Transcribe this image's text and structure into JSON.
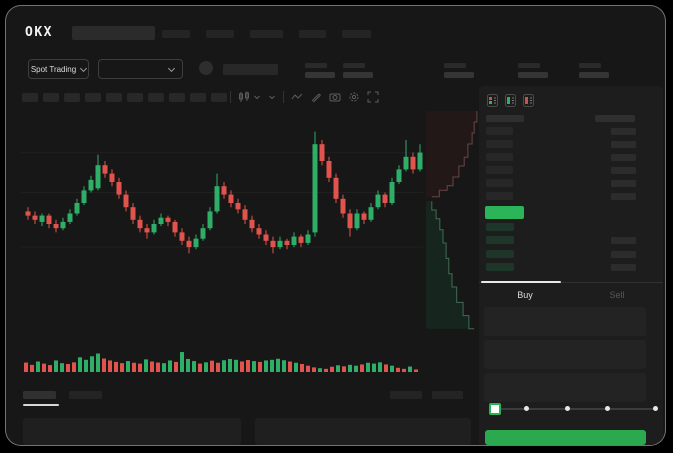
{
  "app": {
    "logo_text": "OKX"
  },
  "topnav": {
    "placeholder_count": 5,
    "placeholder_widths": [
      28,
      28,
      33,
      27,
      29
    ]
  },
  "ticker": {
    "market_selector_label": "Spot Trading",
    "stat_group_count": 5
  },
  "chart_toolbar": {
    "interval_placeholder_count": 10,
    "icon_names": [
      "candlestick-type-icon",
      "chart-style-chevron-icon",
      "indicators-wave-icon",
      "draw-pencil-icon",
      "screenshot-camera-icon",
      "settings-gear-icon",
      "fullscreen-expand-icon"
    ]
  },
  "colors": {
    "candle_up": "#2fae68",
    "candle_down": "#e1544e",
    "last_price": "#2cb458",
    "buy_button": "#2aa94f",
    "depth_ask_line": "#6a4545",
    "depth_ask_fill": "#231818",
    "depth_bid_line": "#3e6d55",
    "depth_bid_fill": "#16261e"
  },
  "chart_data": [
    {
      "type": "candlestick",
      "title": "",
      "xlabel": "",
      "ylabel": "",
      "ylim": [
        0,
        100
      ],
      "grid": true,
      "gridline_values": [
        84,
        65,
        39
      ],
      "ohlc": [
        [
          56,
          58,
          52,
          54
        ],
        [
          54,
          56,
          50,
          52
        ],
        [
          51,
          55,
          49,
          54
        ],
        [
          54,
          55,
          48,
          50
        ],
        [
          50,
          52,
          46,
          48
        ],
        [
          48,
          53,
          47,
          51
        ],
        [
          51,
          57,
          50,
          55
        ],
        [
          55,
          62,
          54,
          60
        ],
        [
          60,
          68,
          59,
          66
        ],
        [
          66,
          73,
          65,
          71
        ],
        [
          67,
          83,
          66,
          78
        ],
        [
          78,
          80,
          72,
          74
        ],
        [
          74,
          76,
          68,
          70
        ],
        [
          70,
          72,
          62,
          64
        ],
        [
          64,
          66,
          56,
          58
        ],
        [
          58,
          60,
          50,
          52
        ],
        [
          52,
          54,
          46,
          48
        ],
        [
          48,
          50,
          43,
          46
        ],
        [
          46,
          52,
          45,
          50
        ],
        [
          50,
          55,
          49,
          53
        ],
        [
          53,
          54,
          49,
          51
        ],
        [
          51,
          52,
          44,
          46
        ],
        [
          46,
          48,
          40,
          42
        ],
        [
          42,
          44,
          36,
          39
        ],
        [
          39,
          45,
          38,
          43
        ],
        [
          43,
          50,
          42,
          48
        ],
        [
          48,
          58,
          47,
          56
        ],
        [
          56,
          74,
          55,
          68
        ],
        [
          68,
          70,
          62,
          64
        ],
        [
          64,
          66,
          58,
          60
        ],
        [
          60,
          62,
          55,
          57
        ],
        [
          57,
          59,
          50,
          52
        ],
        [
          52,
          54,
          46,
          48
        ],
        [
          48,
          50,
          43,
          45
        ],
        [
          45,
          47,
          40,
          42
        ],
        [
          42,
          44,
          36,
          39
        ],
        [
          39,
          44,
          38,
          42
        ],
        [
          42,
          43,
          38,
          40
        ],
        [
          40,
          46,
          39,
          44
        ],
        [
          44,
          45,
          39,
          41
        ],
        [
          41,
          47,
          40,
          45
        ],
        [
          46,
          94,
          44,
          88
        ],
        [
          88,
          90,
          78,
          80
        ],
        [
          80,
          82,
          70,
          72
        ],
        [
          72,
          74,
          60,
          62
        ],
        [
          62,
          64,
          53,
          55
        ],
        [
          55,
          57,
          44,
          48
        ],
        [
          48,
          57,
          47,
          55
        ],
        [
          55,
          56,
          50,
          52
        ],
        [
          52,
          60,
          51,
          58
        ],
        [
          58,
          66,
          57,
          64
        ],
        [
          64,
          65,
          58,
          60
        ],
        [
          60,
          72,
          59,
          70
        ],
        [
          70,
          78,
          69,
          76
        ],
        [
          76,
          90,
          75,
          82
        ],
        [
          82,
          84,
          74,
          76
        ],
        [
          76,
          88,
          75,
          84
        ]
      ]
    },
    {
      "type": "bar",
      "name": "volume",
      "ylim": [
        0,
        100
      ],
      "values": [
        [
          45,
          "d"
        ],
        [
          34,
          "d"
        ],
        [
          50,
          "u"
        ],
        [
          40,
          "d"
        ],
        [
          33,
          "d"
        ],
        [
          55,
          "u"
        ],
        [
          42,
          "u"
        ],
        [
          38,
          "d"
        ],
        [
          46,
          "d"
        ],
        [
          70,
          "u"
        ],
        [
          58,
          "u"
        ],
        [
          75,
          "u"
        ],
        [
          88,
          "u"
        ],
        [
          64,
          "d"
        ],
        [
          55,
          "d"
        ],
        [
          48,
          "d"
        ],
        [
          42,
          "d"
        ],
        [
          52,
          "u"
        ],
        [
          44,
          "d"
        ],
        [
          40,
          "d"
        ],
        [
          60,
          "u"
        ],
        [
          50,
          "d"
        ],
        [
          45,
          "d"
        ],
        [
          42,
          "u"
        ],
        [
          55,
          "u"
        ],
        [
          48,
          "d"
        ],
        [
          95,
          "u"
        ],
        [
          62,
          "u"
        ],
        [
          52,
          "u"
        ],
        [
          40,
          "d"
        ],
        [
          46,
          "u"
        ],
        [
          54,
          "d"
        ],
        [
          44,
          "d"
        ],
        [
          56,
          "u"
        ],
        [
          62,
          "u"
        ],
        [
          58,
          "u"
        ],
        [
          50,
          "d"
        ],
        [
          57,
          "d"
        ],
        [
          52,
          "u"
        ],
        [
          48,
          "d"
        ],
        [
          55,
          "u"
        ],
        [
          58,
          "u"
        ],
        [
          63,
          "u"
        ],
        [
          56,
          "u"
        ],
        [
          50,
          "d"
        ],
        [
          44,
          "u"
        ],
        [
          38,
          "d"
        ],
        [
          30,
          "d"
        ],
        [
          22,
          "d"
        ],
        [
          18,
          "u"
        ],
        [
          15,
          "d"
        ],
        [
          25,
          "d"
        ],
        [
          32,
          "u"
        ],
        [
          27,
          "d"
        ],
        [
          34,
          "u"
        ],
        [
          30,
          "u"
        ],
        [
          36,
          "d"
        ],
        [
          44,
          "u"
        ],
        [
          40,
          "u"
        ],
        [
          46,
          "u"
        ],
        [
          36,
          "d"
        ],
        [
          30,
          "u"
        ],
        [
          20,
          "d"
        ],
        [
          15,
          "d"
        ],
        [
          26,
          "u"
        ],
        [
          12,
          "d"
        ]
      ]
    },
    {
      "type": "area",
      "name": "depth",
      "orientation": "vertical",
      "asks": [
        [
          96,
          0
        ],
        [
          91,
          5
        ],
        [
          87,
          10
        ],
        [
          79,
          15
        ],
        [
          72,
          21
        ],
        [
          62,
          25
        ],
        [
          51,
          30
        ],
        [
          40,
          34
        ],
        [
          25,
          36
        ],
        [
          11,
          39
        ]
      ],
      "bids": [
        [
          11,
          41
        ],
        [
          19,
          45
        ],
        [
          26,
          49
        ],
        [
          32,
          54
        ],
        [
          38,
          60
        ],
        [
          43,
          67
        ],
        [
          49,
          74
        ],
        [
          58,
          80
        ],
        [
          70,
          87
        ],
        [
          81,
          93
        ],
        [
          91,
          99
        ]
      ]
    }
  ],
  "orderbook": {
    "view_toggle_icons": [
      "orderbook-view-split-icon",
      "orderbook-view-buy-icon",
      "orderbook-view-sell-icon"
    ],
    "ask_row_count": 6,
    "bid_rows_right_bar": [
      false,
      true,
      true,
      true
    ]
  },
  "side_tabs": {
    "buy_label": "Buy",
    "sell_label": "Sell",
    "active": "Buy"
  },
  "trade_form": {
    "input_count": 3,
    "slider": {
      "stop_count": 5,
      "active_stop_index": 0
    }
  },
  "bottom_tabs": {
    "left_placeholder_count": 2,
    "right_placeholder_count": 2,
    "active_index": 0
  },
  "bottom_panels": {
    "count": 2
  }
}
